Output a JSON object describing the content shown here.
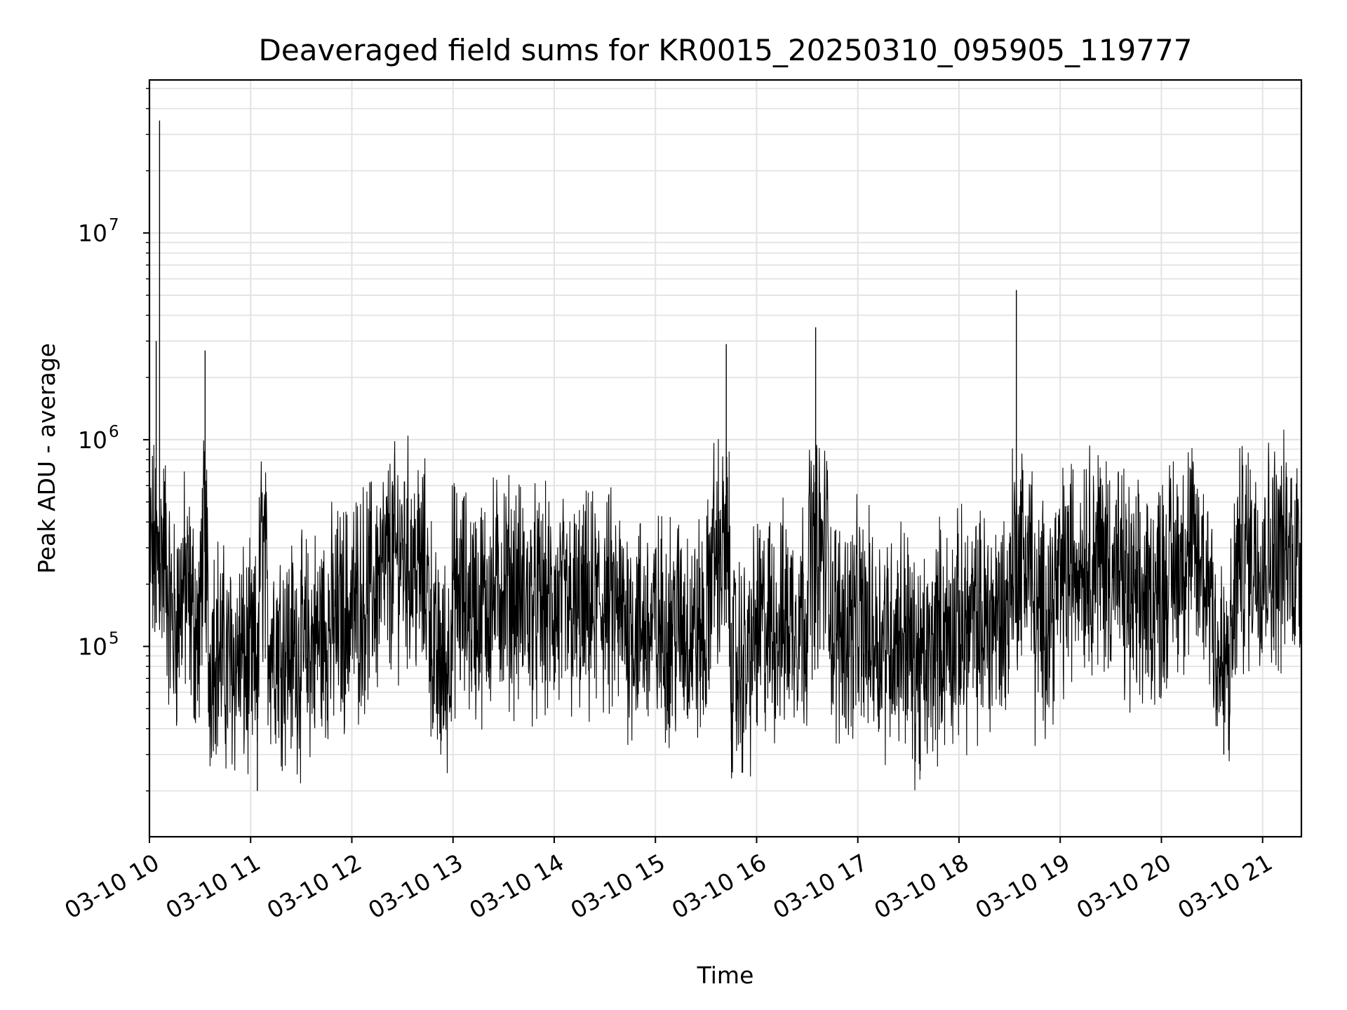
{
  "chart_data": {
    "type": "line",
    "title": "Deaveraged field sums for KR0015_20250310_095905_119777",
    "xlabel": "Time",
    "ylabel": "Peak ADU - average",
    "y_scale": "log",
    "ylim": [
      12000,
      55000000
    ],
    "xlim": [
      "2025-03-10 10:00",
      "2025-03-10 21:23"
    ],
    "x_ticks": [
      "03-10 10",
      "03-10 11",
      "03-10 12",
      "03-10 13",
      "03-10 14",
      "03-10 15",
      "03-10 16",
      "03-10 17",
      "03-10 18",
      "03-10 19",
      "03-10 20",
      "03-10 21"
    ],
    "y_ticks": [
      {
        "base": "10",
        "exp": "5",
        "value": 100000
      },
      {
        "base": "10",
        "exp": "6",
        "value": 1000000
      },
      {
        "base": "10",
        "exp": "7",
        "value": 10000000
      }
    ],
    "grid": true,
    "line_color": "#000000",
    "series": [
      {
        "x": [
          "2025-03-10 10:00",
          "2025-03-10 10:02",
          "2025-03-10 10:04",
          "2025-03-10 10:06",
          "2025-03-10 10:07",
          "2025-03-10 10:09",
          "2025-03-10 10:12",
          "2025-03-10 10:15",
          "2025-03-10 10:20",
          "2025-03-10 10:25",
          "2025-03-10 10:30",
          "2025-03-10 10:33",
          "2025-03-10 10:35",
          "2025-03-10 10:38",
          "2025-03-10 10:45",
          "2025-03-10 10:55",
          "2025-03-10 11:00",
          "2025-03-10 11:04",
          "2025-03-10 11:06",
          "2025-03-10 11:10",
          "2025-03-10 11:20",
          "2025-03-10 11:30",
          "2025-03-10 11:40",
          "2025-03-10 11:50",
          "2025-03-10 12:00",
          "2025-03-10 12:15",
          "2025-03-10 12:30",
          "2025-03-10 12:45",
          "2025-03-10 12:53",
          "2025-03-10 13:00",
          "2025-03-10 13:15",
          "2025-03-10 13:30",
          "2025-03-10 13:45",
          "2025-03-10 14:00",
          "2025-03-10 14:15",
          "2025-03-10 14:30",
          "2025-03-10 14:45",
          "2025-03-10 15:00",
          "2025-03-10 15:15",
          "2025-03-10 15:30",
          "2025-03-10 15:42",
          "2025-03-10 15:45",
          "2025-03-10 16:00",
          "2025-03-10 16:15",
          "2025-03-10 16:30",
          "2025-03-10 16:35",
          "2025-03-10 16:45",
          "2025-03-10 17:00",
          "2025-03-10 17:15",
          "2025-03-10 17:30",
          "2025-03-10 17:37",
          "2025-03-10 17:45",
          "2025-03-10 18:00",
          "2025-03-10 18:15",
          "2025-03-10 18:30",
          "2025-03-10 18:34",
          "2025-03-10 18:45",
          "2025-03-10 19:00",
          "2025-03-10 19:15",
          "2025-03-10 19:30",
          "2025-03-10 19:45",
          "2025-03-10 20:00",
          "2025-03-10 20:15",
          "2025-03-10 20:30",
          "2025-03-10 20:37",
          "2025-03-10 20:45",
          "2025-03-10 21:00",
          "2025-03-10 21:10",
          "2025-03-10 21:23"
        ],
        "y": [
          400000,
          700000,
          3000000,
          35000000,
          1500000,
          300000,
          150000,
          120000,
          200000,
          150000,
          100000,
          2700000,
          60000,
          120000,
          80000,
          90000,
          60000,
          20000,
          1000000,
          120000,
          100000,
          90000,
          110000,
          130000,
          150000,
          200000,
          300000,
          200000,
          35000,
          180000,
          150000,
          200000,
          160000,
          150000,
          140000,
          160000,
          130000,
          120000,
          130000,
          110000,
          2900000,
          35000,
          120000,
          130000,
          150000,
          3500000,
          120000,
          130000,
          110000,
          120000,
          25000,
          110000,
          120000,
          130000,
          150000,
          5300000,
          120000,
          200000,
          300000,
          250000,
          150000,
          200000,
          300000,
          200000,
          30000,
          250000,
          450000,
          550000,
          550000
        ]
      }
    ]
  }
}
